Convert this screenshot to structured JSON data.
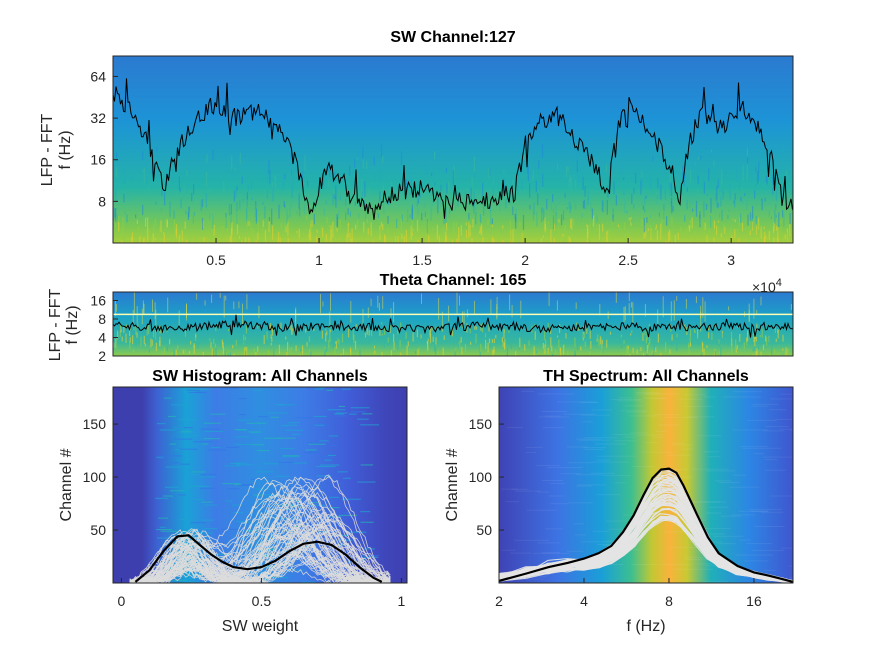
{
  "chart_data": [
    {
      "id": "sw",
      "type": "heatmap",
      "title": "SW Channel:127",
      "ylabel_lines": [
        "LFP - FFT",
        "f (Hz)"
      ],
      "xlabel": "",
      "xlim": [
        0,
        33000
      ],
      "x_ticks": [
        5000,
        10000,
        15000,
        20000,
        25000,
        30000
      ],
      "x_tick_labels": [
        "0.5",
        "1",
        "1.5",
        "2",
        "2.5",
        "3"
      ],
      "x_exponent_label": "×10",
      "x_exponent_sup": "4",
      "y_scale": "log2",
      "ylim": [
        4,
        90
      ],
      "y_ticks": [
        8,
        16,
        32,
        64
      ],
      "y_tick_labels": [
        "8",
        "16",
        "32",
        "64"
      ],
      "trace_color": "#000000",
      "trace": {
        "x": [
          0,
          1500,
          2500,
          4000,
          5000,
          6000,
          7000,
          8000,
          9500,
          10500,
          11500,
          12500,
          13500,
          15000,
          16500,
          18000,
          19500,
          20500,
          21500,
          22500,
          24000,
          25000,
          26000,
          27500,
          28500,
          29500,
          30500,
          31500,
          32500,
          33000
        ],
        "y": [
          50,
          24,
          10,
          30,
          40,
          32,
          36,
          27,
          6,
          14,
          9,
          7,
          9,
          10,
          8,
          8,
          9,
          28,
          34,
          21,
          9,
          42,
          26,
          8,
          34,
          27,
          38,
          25,
          8,
          8
        ]
      }
    },
    {
      "id": "theta",
      "type": "heatmap",
      "title": "Theta Channel: 165",
      "ylabel_lines": [
        "LFP - FFT",
        "f (Hz)"
      ],
      "xlabel": "",
      "xlim": [
        0,
        33000
      ],
      "y_scale": "log2",
      "ylim": [
        2,
        22
      ],
      "y_ticks": [
        2,
        4,
        8,
        16
      ],
      "y_tick_labels": [
        "2",
        "4",
        "8",
        "16"
      ],
      "threshold_line_hz": 9.5,
      "threshold_color": "#ffffb3",
      "trace_color": "#000000",
      "trace": {
        "x": [
          0,
          3000,
          6000,
          9000,
          12000,
          15000,
          18000,
          21000,
          24000,
          27000,
          30000,
          33000
        ],
        "y": [
          6.2,
          5.6,
          6.6,
          5.8,
          6.0,
          5.4,
          6.3,
          5.6,
          6.1,
          5.7,
          6.2,
          5.9
        ]
      }
    },
    {
      "id": "swhist",
      "type": "heatmap",
      "title": "SW Histogram: All Channels",
      "xlabel": "SW weight",
      "ylabel": "Channel #",
      "xlim": [
        -0.03,
        1.02
      ],
      "ylim": [
        0,
        185
      ],
      "x_ticks": [
        0,
        0.5,
        1
      ],
      "x_tick_labels": [
        "0",
        "0.5",
        "1"
      ],
      "y_ticks": [
        50,
        100,
        150
      ],
      "y_tick_labels": [
        "50",
        "100",
        "150"
      ],
      "mean_line": {
        "x": [
          0.05,
          0.1,
          0.15,
          0.2,
          0.24,
          0.28,
          0.32,
          0.36,
          0.4,
          0.45,
          0.5,
          0.55,
          0.6,
          0.65,
          0.7,
          0.75,
          0.8,
          0.85,
          0.9,
          0.93
        ],
        "y": [
          1,
          12,
          30,
          44,
          45,
          36,
          27,
          20,
          15,
          13,
          15,
          21,
          30,
          37,
          39,
          36,
          27,
          15,
          5,
          1
        ]
      }
    },
    {
      "id": "thspec",
      "type": "heatmap",
      "title": "TH Spectrum: All Channels",
      "xlabel": "f (Hz)",
      "ylabel": "Channel #",
      "x_scale": "log2",
      "xlim": [
        2,
        22
      ],
      "ylim": [
        0,
        185
      ],
      "x_ticks": [
        2,
        4,
        8,
        16
      ],
      "x_tick_labels": [
        "2",
        "4",
        "8",
        "16"
      ],
      "y_ticks": [
        50,
        100,
        150
      ],
      "y_tick_labels": [
        "50",
        "100",
        "150"
      ],
      "mean_line": {
        "x": [
          2,
          2.5,
          3,
          3.5,
          4,
          4.5,
          5,
          5.5,
          6,
          6.5,
          7,
          7.5,
          8,
          8.5,
          9,
          10,
          11,
          12,
          14,
          16,
          18,
          20,
          22
        ],
        "y": [
          2,
          9,
          15,
          19,
          23,
          28,
          35,
          48,
          64,
          83,
          99,
          107,
          108,
          104,
          92,
          66,
          43,
          28,
          16,
          10,
          7,
          4,
          1
        ]
      }
    }
  ]
}
